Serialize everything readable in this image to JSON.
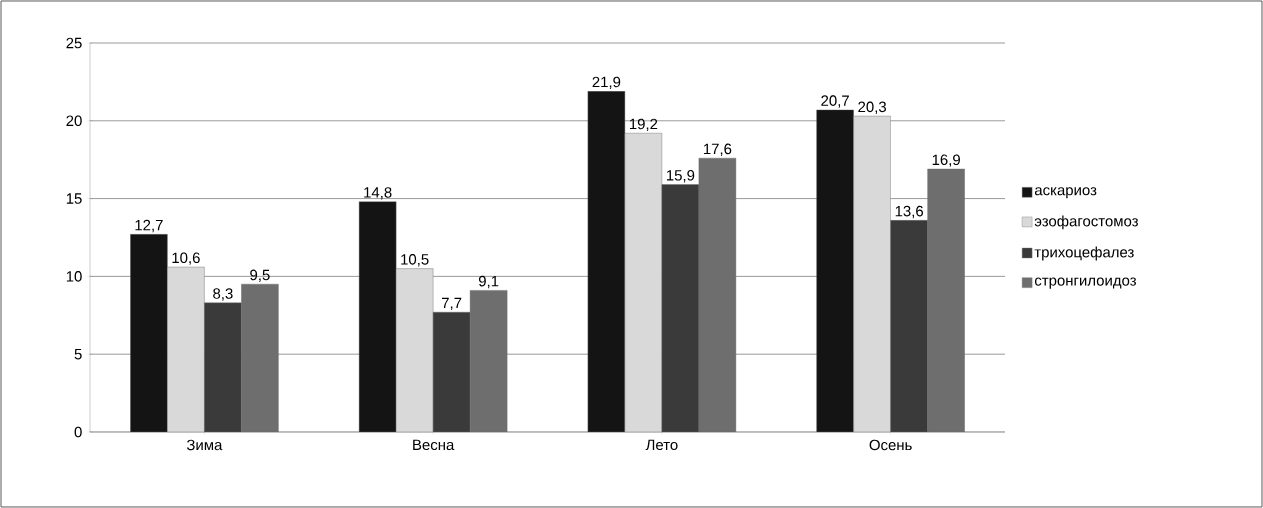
{
  "chart_data": {
    "type": "bar",
    "categories": [
      "Зима",
      "Весна",
      "Лето",
      "Осень"
    ],
    "series": [
      {
        "name": "аскариоз",
        "color": "#141414",
        "values": [
          12.7,
          14.8,
          21.9,
          20.7
        ],
        "value_labels": [
          "12,7",
          "14,8",
          "21,9",
          "20,7"
        ]
      },
      {
        "name": "эзофагостомоз",
        "color": "#d9d9d9",
        "values": [
          10.6,
          10.5,
          19.2,
          20.3
        ],
        "value_labels": [
          "10,6",
          "10,5",
          "19,2",
          "20,3"
        ]
      },
      {
        "name": "трихоцефалез",
        "color": "#3a3a3a",
        "values": [
          8.3,
          7.7,
          15.9,
          13.6
        ],
        "value_labels": [
          "8,3",
          "7,7",
          "15,9",
          "13,6"
        ]
      },
      {
        "name": "стронгилоидоз",
        "color": "#6e6e6e",
        "values": [
          9.5,
          9.1,
          17.6,
          16.9
        ],
        "value_labels": [
          "9,5",
          "9,1",
          "17,6",
          "16,9"
        ]
      }
    ],
    "ylim": [
      0,
      25
    ],
    "yticks": [
      0,
      5,
      10,
      15,
      20,
      25
    ],
    "grid": "y",
    "legend": "right"
  }
}
